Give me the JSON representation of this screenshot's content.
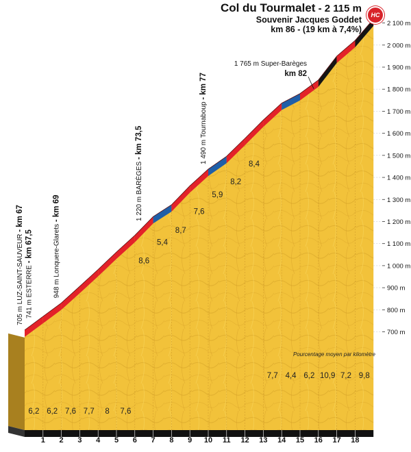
{
  "title": {
    "name": "Col du Tourmalet",
    "altitude": " - 2 115 m",
    "souvenir": "Souvenir Jacques Goddet",
    "km_info": "km 86 - (19 km à 7,4%)",
    "category": "HC"
  },
  "colors": {
    "terrain": "#f2c23a",
    "road_red": "#e32229",
    "road_blue": "#1f5fa8",
    "road_black": "#151515",
    "base": "#111111"
  },
  "chart_data": {
    "type": "area",
    "title": "Col du Tourmalet - 2 115 m",
    "ylabel": "",
    "xlabel": "",
    "ylim": [
      700,
      2100
    ],
    "y_ticks": [
      "700 m",
      "800 m",
      "900 m",
      "1 000 m",
      "1 100 m",
      "1 200 m",
      "1 300 m",
      "1 400 m",
      "1 500 m",
      "1 600 m",
      "1 700 m",
      "1 800 m",
      "1 900 m",
      "2 000 m",
      "2 100 m"
    ],
    "x_ticks": [
      "1",
      "2",
      "3",
      "4",
      "5",
      "6",
      "7",
      "8",
      "9",
      "10",
      "11",
      "12",
      "13",
      "14",
      "15",
      "16",
      "17",
      "18"
    ],
    "km_segments": [
      0,
      1,
      2,
      3,
      4,
      5,
      6,
      7,
      8,
      9,
      10,
      11,
      12,
      13,
      14,
      15,
      16,
      17,
      18,
      19
    ],
    "gradients": [
      6.2,
      6.2,
      7.6,
      7.7,
      8,
      7.6,
      8.6,
      5.4,
      8.7,
      7.6,
      5.9,
      8.2,
      8.4,
      7.7,
      4.4,
      6.2,
      10.9,
      7.2,
      9.8
    ],
    "gradient_labels": [
      "6,2",
      "6,2",
      "7,6",
      "7,7",
      "8",
      "7,6",
      "8,6",
      "5,4",
      "8,7",
      "7,6",
      "5,9",
      "8,2",
      "8,4",
      "7,7",
      "4,4",
      "6,2",
      "10,9",
      "7,2",
      "9,8"
    ],
    "segment_colors": [
      "red",
      "red",
      "red",
      "red",
      "red",
      "red",
      "red",
      "blue",
      "red",
      "red",
      "blue",
      "red",
      "red",
      "red",
      "blue",
      "red",
      "black",
      "red",
      "black"
    ],
    "start_altitude": 705,
    "end_altitude": 2115,
    "note": "Pourcentage moyen par kilomètre",
    "waypoints": [
      {
        "x": 0,
        "alt_label": "705 m LUZ-SAINT-SAUVEUR",
        "km_label": "- km 67",
        "orientation": "vertical"
      },
      {
        "x": 0.5,
        "alt_label": "741 m ESTERRE",
        "km_label": "- km 67,5",
        "orientation": "vertical"
      },
      {
        "x": 2,
        "alt_label": "948 m Lonquere-Glarets",
        "km_label": "- km 69",
        "orientation": "vertical"
      },
      {
        "x": 6.5,
        "alt_label": "1 220 m BARÈGES",
        "km_label": "- km 73,5",
        "orientation": "vertical"
      },
      {
        "x": 10,
        "alt_label": "1 490 m Tournaboup",
        "km_label": "- km 77",
        "orientation": "vertical"
      },
      {
        "x": 15,
        "alt_label": "1 765 m Super-Barèges",
        "km_label": "km 82",
        "orientation": "horizontal"
      }
    ]
  }
}
